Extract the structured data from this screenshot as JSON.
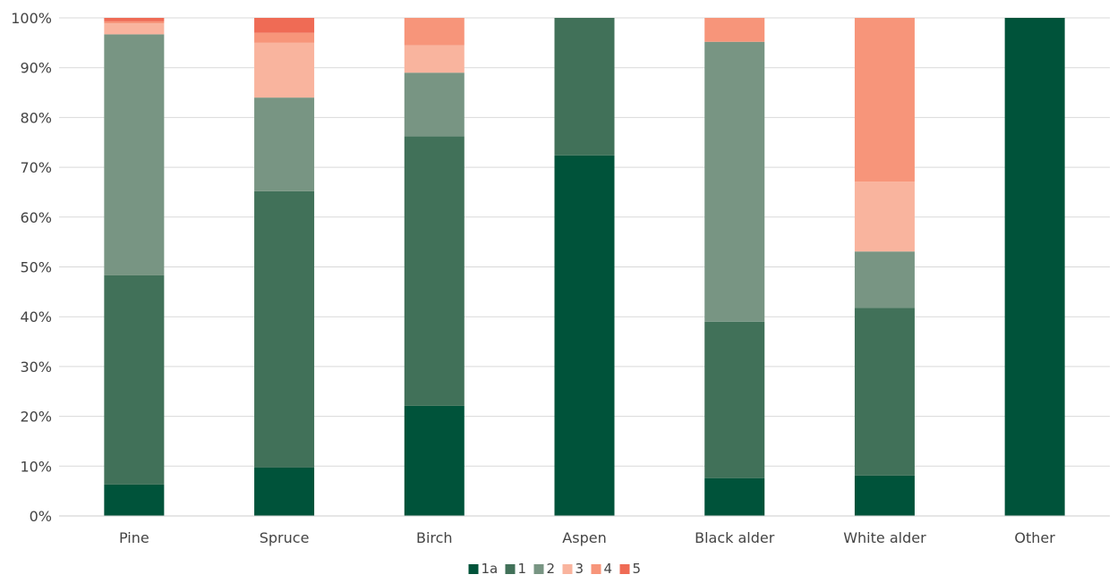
{
  "chart_data": {
    "type": "bar",
    "stacked": true,
    "percent": true,
    "categories": [
      "Pine",
      "Spruce",
      "Birch",
      "Aspen",
      "Black alder",
      "White alder",
      "Other"
    ],
    "series": [
      {
        "name": "1a",
        "color": "#00533a",
        "values": [
          6.3,
          9.7,
          22.1,
          72.4,
          7.6,
          8.1,
          100
        ]
      },
      {
        "name": "1",
        "color": "#417159",
        "values": [
          42.0,
          55.5,
          54.1,
          27.6,
          31.4,
          33.7,
          0
        ]
      },
      {
        "name": "2",
        "color": "#789583",
        "values": [
          48.4,
          18.8,
          12.8,
          0,
          56.2,
          11.3,
          0
        ]
      },
      {
        "name": "3",
        "color": "#f9b49e",
        "values": [
          2.2,
          11.0,
          5.5,
          0,
          0,
          14.0,
          0
        ]
      },
      {
        "name": "4",
        "color": "#f7957a",
        "values": [
          0.4,
          2.0,
          5.5,
          0,
          4.8,
          32.9,
          0
        ]
      },
      {
        "name": "5",
        "color": "#ef6b55",
        "values": [
          0.7,
          3.0,
          0,
          0,
          0,
          0,
          0
        ]
      }
    ],
    "y_ticks": [
      "0%",
      "10%",
      "20%",
      "30%",
      "40%",
      "50%",
      "60%",
      "70%",
      "80%",
      "90%",
      "100%"
    ],
    "ylim": [
      0,
      100
    ],
    "grid": true,
    "legend_position": "bottom"
  }
}
